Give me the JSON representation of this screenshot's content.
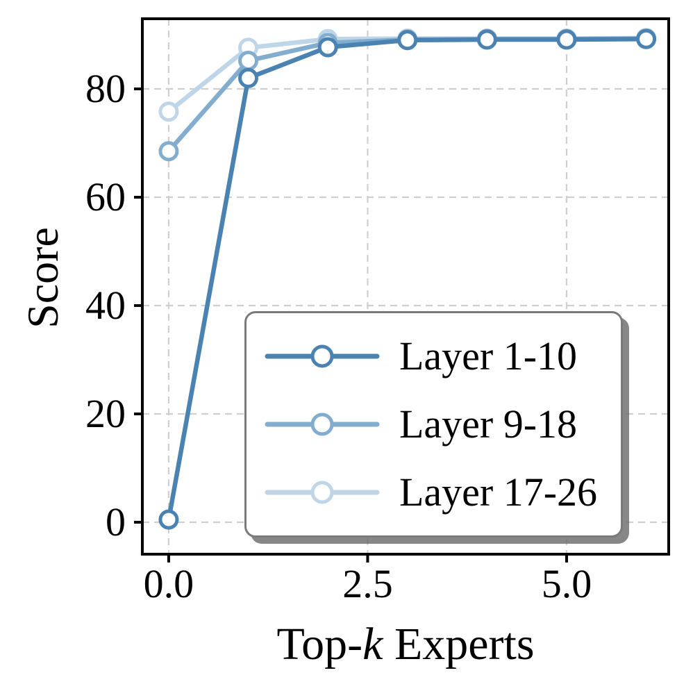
{
  "chart_data": {
    "type": "line",
    "title": "",
    "xlabel": "Top-k Experts",
    "xlabel_parts": {
      "pre": "Top-",
      "italic": "k",
      "post": " Experts"
    },
    "ylabel": "Score",
    "x": [
      0,
      1,
      2,
      3,
      4,
      5,
      6
    ],
    "series": [
      {
        "name": "Layer 1-10",
        "color": "#4a82b2",
        "values": [
          0.5,
          82.0,
          87.7,
          89.0,
          89.1,
          89.1,
          89.2
        ]
      },
      {
        "name": "Layer 9-18",
        "color": "#83adce",
        "values": [
          68.5,
          85.2,
          88.5,
          89.1,
          89.2,
          89.2,
          89.3
        ]
      },
      {
        "name": "Layer 17-26",
        "color": "#bfd6e9",
        "values": [
          75.8,
          87.6,
          89.2,
          89.3,
          89.3,
          89.3,
          89.4
        ]
      }
    ],
    "xticks": [
      0,
      2.5,
      5
    ],
    "xtick_labels": [
      "0.0",
      "2.5",
      "5.0"
    ],
    "yticks": [
      0,
      20,
      40,
      60,
      80
    ],
    "ytick_labels": [
      "0",
      "20",
      "40",
      "60",
      "80"
    ],
    "xlim": [
      -0.331,
      6.283
    ],
    "ylim": [
      -5.9,
      92.95
    ],
    "grid": true,
    "grid_color": "#cfcfcf",
    "spine_color": "#000000",
    "marker": "circle",
    "marker_fill": "#ffffff",
    "legend_position": "lower right",
    "legend_border_color": "#7a7a7a"
  }
}
